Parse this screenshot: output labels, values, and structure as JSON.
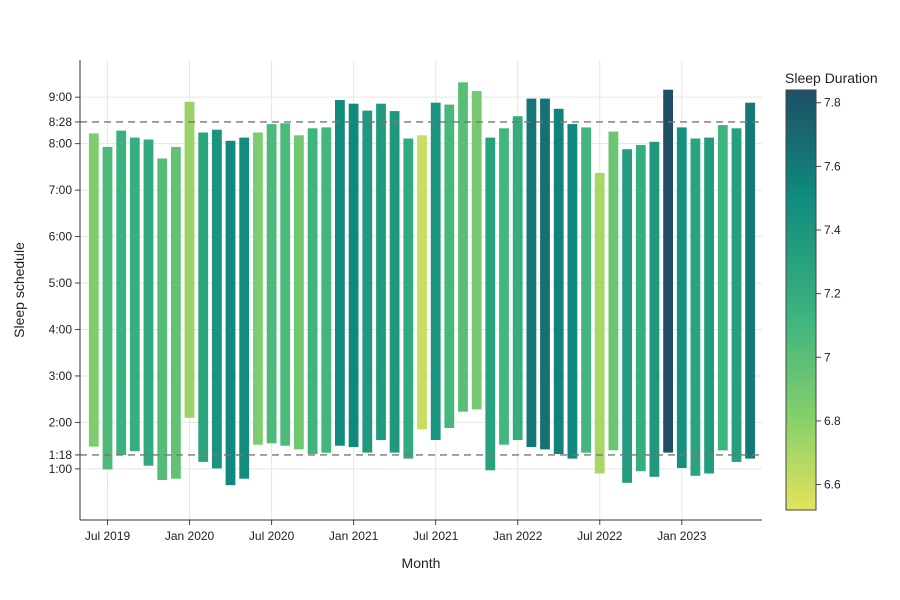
{
  "chart_data": {
    "type": "bar",
    "xlabel": "Month",
    "ylabel": "Sleep schedule",
    "colorbar_title": "Sleep Duration",
    "x_ticks": [
      {
        "label": "Jul 2019",
        "month": "2019-07"
      },
      {
        "label": "Jan 2020",
        "month": "2020-01"
      },
      {
        "label": "Jul 2020",
        "month": "2020-07"
      },
      {
        "label": "Jan 2021",
        "month": "2021-01"
      },
      {
        "label": "Jul 2021",
        "month": "2021-07"
      },
      {
        "label": "Jan 2022",
        "month": "2022-01"
      },
      {
        "label": "Jul 2022",
        "month": "2022-07"
      },
      {
        "label": "Jan 2023",
        "month": "2023-01"
      }
    ],
    "y_ticks": [
      {
        "label": "1:00",
        "hours": 1
      },
      {
        "label": "2:00",
        "hours": 2
      },
      {
        "label": "3:00",
        "hours": 3
      },
      {
        "label": "4:00",
        "hours": 4
      },
      {
        "label": "5:00",
        "hours": 5
      },
      {
        "label": "6:00",
        "hours": 6
      },
      {
        "label": "7:00",
        "hours": 7
      },
      {
        "label": "8:00",
        "hours": 8
      },
      {
        "label": "9:00",
        "hours": 9
      }
    ],
    "reference_lines": [
      {
        "label": "1:18",
        "hours": 1.3
      },
      {
        "label": "8:28",
        "hours": 8.467
      }
    ],
    "ylim_hours": [
      -0.1,
      9.8
    ],
    "colorbar": {
      "min": 6.52,
      "max": 7.84,
      "ticks": [
        6.6,
        6.8,
        7,
        7.2,
        7.4,
        7.6,
        7.8
      ],
      "colors": [
        "#e3e35c",
        "#86cf6a",
        "#3fb57e",
        "#0f8a7e",
        "#1e4f66"
      ]
    },
    "grid": true,
    "months": [
      "2019-06",
      "2019-07",
      "2019-08",
      "2019-09",
      "2019-10",
      "2019-11",
      "2019-12",
      "2020-01",
      "2020-02",
      "2020-03",
      "2020-04",
      "2020-05",
      "2020-06",
      "2020-07",
      "2020-08",
      "2020-09",
      "2020-10",
      "2020-11",
      "2020-12",
      "2021-01",
      "2021-02",
      "2021-03",
      "2021-04",
      "2021-05",
      "2021-06",
      "2021-07",
      "2021-08",
      "2021-09",
      "2021-10",
      "2021-11",
      "2021-12",
      "2022-01",
      "2022-02",
      "2022-03",
      "2022-04",
      "2022-05",
      "2022-06",
      "2022-07",
      "2022-08",
      "2022-09",
      "2022-10",
      "2022-11",
      "2022-12",
      "2023-01",
      "2023-02",
      "2023-03",
      "2023-04",
      "2023-05",
      "2023-06"
    ],
    "bedtime_hours": [
      1.48,
      0.99,
      1.3,
      1.38,
      1.07,
      0.76,
      0.79,
      2.1,
      1.15,
      1.01,
      0.65,
      0.79,
      1.52,
      1.55,
      1.5,
      1.42,
      1.32,
      1.35,
      1.5,
      1.47,
      1.35,
      1.62,
      1.35,
      1.22,
      1.85,
      1.62,
      1.88,
      2.23,
      2.28,
      0.97,
      1.52,
      1.62,
      1.47,
      1.42,
      1.32,
      1.22,
      1.35,
      0.9,
      1.4,
      0.7,
      0.95,
      0.83,
      1.35,
      1.02,
      0.85,
      0.9,
      1.4,
      1.15,
      1.22
    ],
    "waketime_hours": [
      8.22,
      7.93,
      8.28,
      8.13,
      8.09,
      7.68,
      7.93,
      8.9,
      8.24,
      8.3,
      8.06,
      8.13,
      8.24,
      8.42,
      8.44,
      8.18,
      8.33,
      8.35,
      8.94,
      8.86,
      8.71,
      8.86,
      8.7,
      8.11,
      8.18,
      8.88,
      8.84,
      9.32,
      9.13,
      8.13,
      8.33,
      8.59,
      8.97,
      8.97,
      8.75,
      8.42,
      8.35,
      7.37,
      8.26,
      7.88,
      7.97,
      8.04,
      9.16,
      8.35,
      8.11,
      8.13,
      8.4,
      8.33,
      8.88
    ],
    "duration_hours": [
      6.85,
      7.05,
      7.15,
      7.18,
      7.22,
      7.02,
      6.97,
      6.75,
      7.28,
      7.42,
      7.52,
      7.48,
      6.85,
      7.05,
      7.05,
      6.9,
      7.12,
      7.1,
      7.5,
      7.52,
      7.38,
      7.35,
      7.38,
      7.22,
      6.6,
      7.42,
      7.08,
      7.0,
      6.88,
      7.3,
      7.1,
      7.2,
      7.62,
      7.65,
      7.55,
      7.52,
      7.1,
      6.7,
      6.92,
      7.35,
      7.18,
      7.38,
      7.84,
      7.45,
      7.28,
      7.35,
      7.12,
      7.32,
      7.6
    ]
  }
}
